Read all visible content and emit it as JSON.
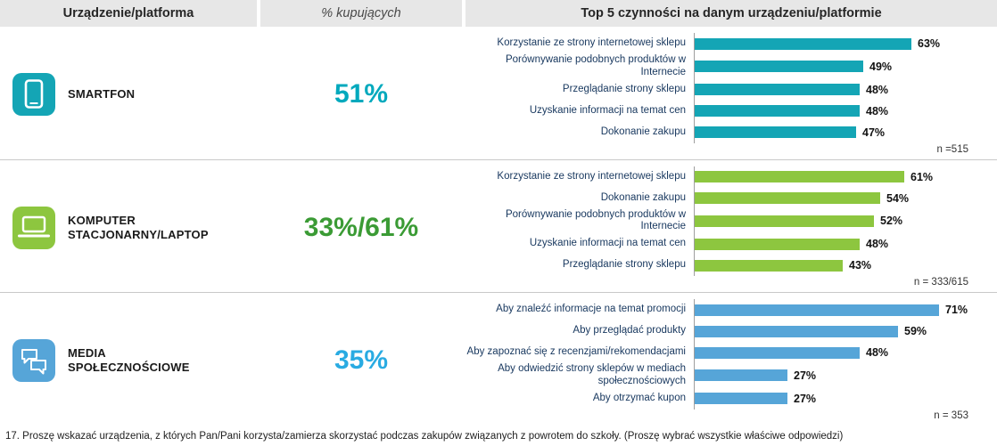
{
  "header": {
    "device_col": "Urządzenie/platforma",
    "percent_col": "% kupujących",
    "top5_col": "Top 5 czynności na danym urządzeniu/platformie"
  },
  "footnote": "17. Proszę wskazać urządzenia, z których Pan/Pani korzysta/zamierza skorzystać podczas zakupów związanych z powrotem do szkoły. (Proszę wybrać wszystkie właściwe odpowiedzi)",
  "chart_data": [
    {
      "type": "bar",
      "orientation": "horizontal",
      "device": "SMARTFON",
      "icon": "smartphone-icon",
      "buyers_percent": "51%",
      "color": "#14a5b5",
      "percent_color": "#00a9bd",
      "categories": [
        "Korzystanie ze strony internetowej sklepu",
        "Porównywanie podobnych produktów w Internecie",
        "Przeglądanie strony sklepu",
        "Uzyskanie informacji na temat cen",
        "Dokonanie zakupu"
      ],
      "values": [
        63,
        49,
        48,
        48,
        47
      ],
      "n_label": "n =515",
      "xlim": [
        0,
        100
      ]
    },
    {
      "type": "bar",
      "orientation": "horizontal",
      "device": "KOMPUTER STACJONARNY/LAPTOP",
      "icon": "laptop-icon",
      "buyers_percent": "33%/61%",
      "color": "#8dc63f",
      "percent_color": "#3b9b35",
      "categories": [
        "Korzystanie ze strony internetowej sklepu",
        "Dokonanie zakupu",
        "Porównywanie podobnych produktów w Internecie",
        "Uzyskanie informacji na temat cen",
        "Przeglądanie strony sklepu"
      ],
      "values": [
        61,
        54,
        52,
        48,
        43
      ],
      "n_label": "n =  333/615",
      "xlim": [
        0,
        100
      ]
    },
    {
      "type": "bar",
      "orientation": "horizontal",
      "device": "MEDIA SPOŁECZNOŚCIOWE",
      "icon": "social-media-icon",
      "buyers_percent": "35%",
      "color": "#56a5d8",
      "percent_color": "#29abe2",
      "categories": [
        "Aby znaleźć informacje na temat promocji",
        "Aby przeglądać produkty",
        "Aby zapoznać się z recenzjami/rekomendacjami",
        "Aby odwiedzić strony sklepów w mediach społecznościowych",
        "Aby otrzymać kupon"
      ],
      "values": [
        71,
        59,
        48,
        27,
        27
      ],
      "n_label": "n =  353",
      "xlim": [
        0,
        100
      ]
    }
  ]
}
